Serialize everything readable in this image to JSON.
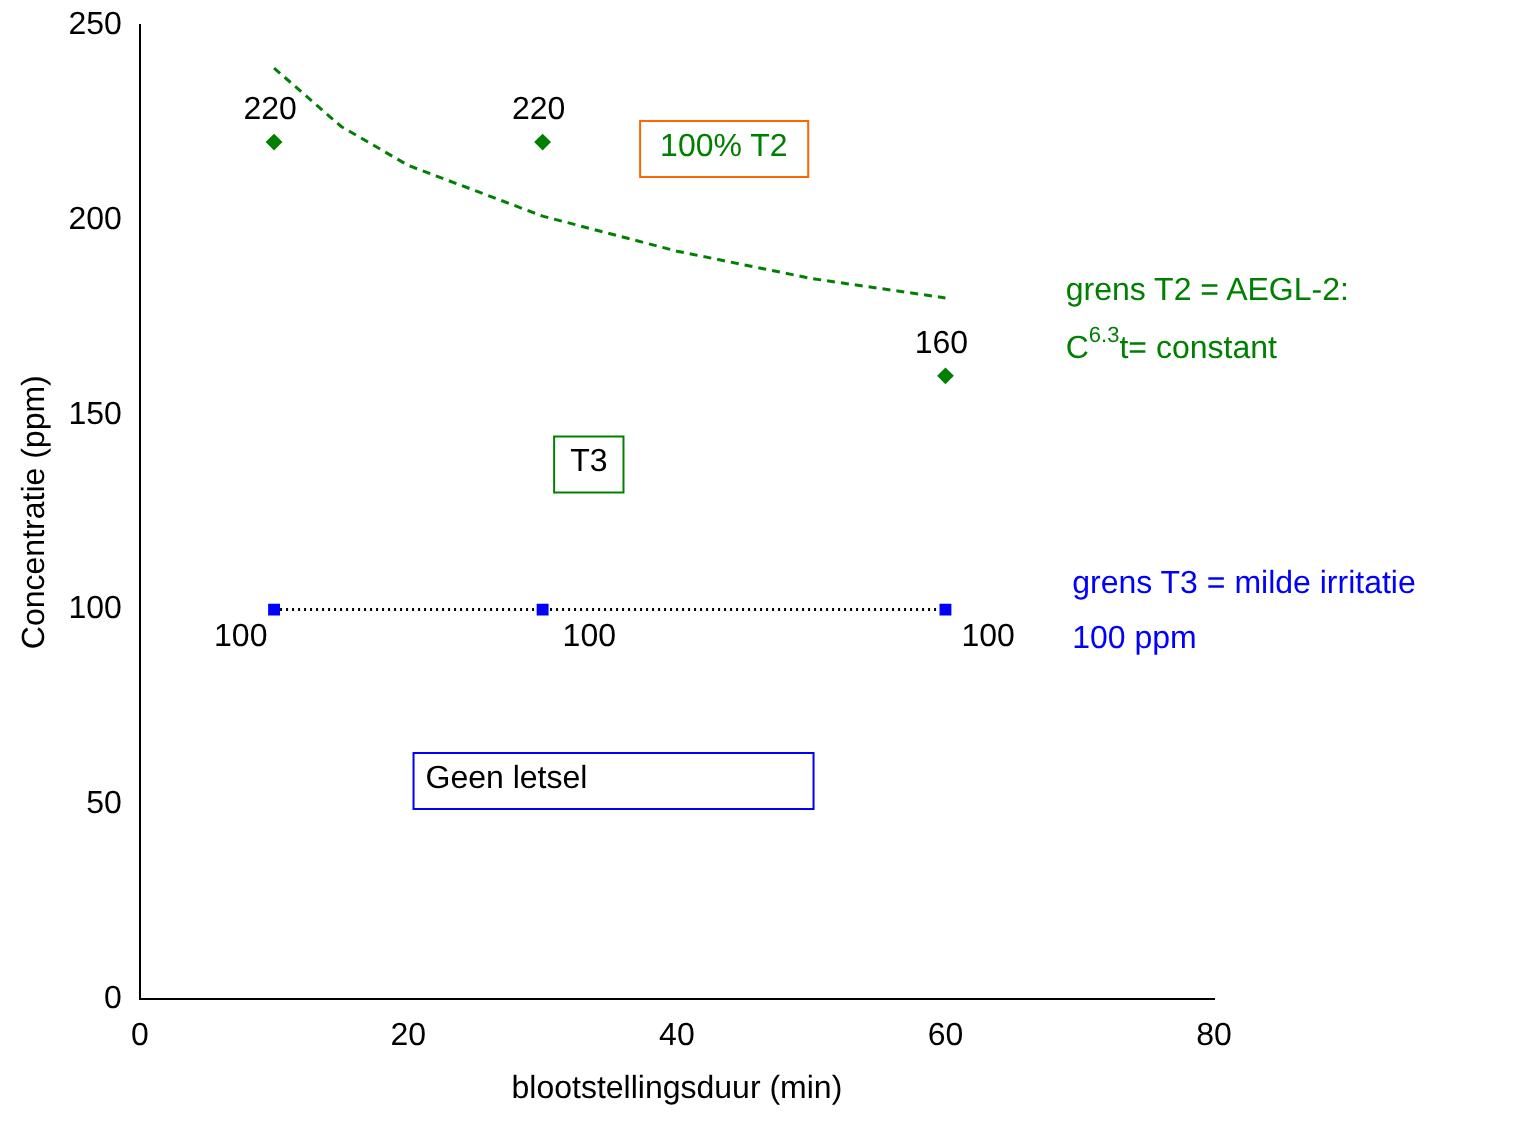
{
  "chart_data": {
    "type": "scatter",
    "xlabel": "blootstellingsduur (min)",
    "ylabel": "Concentratie (ppm)",
    "xlim": [
      0,
      80
    ],
    "xticks": [
      0,
      20,
      40,
      60,
      80
    ],
    "ylim": [
      0,
      250
    ],
    "yticks": [
      0,
      50,
      100,
      150,
      200,
      250
    ],
    "grid": false,
    "legend": false,
    "series": [
      {
        "type": "scatter",
        "color": "#008000",
        "marker": "diamond",
        "x": [
          10,
          30,
          60
        ],
        "values": [
          220,
          220,
          160
        ],
        "value_labels": [
          "220",
          "220",
          "160"
        ]
      },
      {
        "type": "scatter",
        "color": "#0000ff",
        "marker": "square",
        "x": [
          10,
          30,
          60
        ],
        "values": [
          100,
          100,
          100
        ],
        "value_labels": [
          "100",
          "100",
          "100"
        ]
      },
      {
        "type": "line",
        "color": "#008000",
        "line_style": "dashed",
        "marker": "none",
        "x": [
          10,
          15,
          20,
          30,
          40,
          50,
          60
        ],
        "values": [
          239,
          224,
          214,
          201,
          192,
          185,
          180
        ]
      },
      {
        "type": "line",
        "color": "#000000",
        "line_style": "dotted",
        "marker": "none",
        "x": [
          10,
          60
        ],
        "values": [
          100,
          100
        ]
      }
    ],
    "annotations": [
      "100% T2",
      "T3",
      "Geen letsel",
      "grens T2 = AEGL-2:",
      "C$^{6.3}$t= constant",
      "grens T3 = milde irritatie",
      "100 ppm"
    ]
  }
}
